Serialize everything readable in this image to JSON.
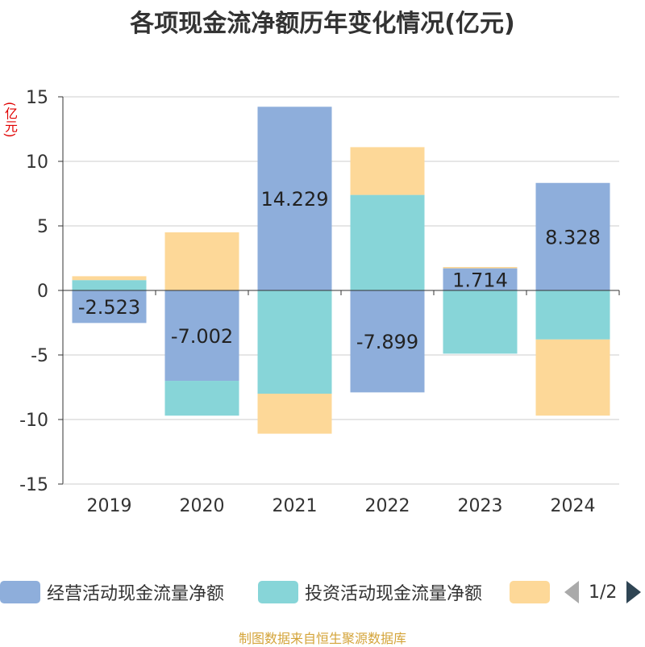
{
  "chart_data": {
    "type": "bar",
    "stacked": true,
    "title": "各项现金流净额历年变化情况(亿元)",
    "ylabel": "(亿元)",
    "xlabel": "",
    "categories": [
      "2019",
      "2020",
      "2021",
      "2022",
      "2023",
      "2024"
    ],
    "ylim": [
      -15,
      15
    ],
    "yticks": [
      15,
      10,
      5,
      0,
      -5,
      -10,
      -15
    ],
    "series": [
      {
        "name": "经营活动现金流量净额",
        "color": "#8eaedb",
        "values": [
          -2.523,
          -7.002,
          14.229,
          -7.899,
          1.714,
          8.328
        ],
        "labels": [
          "-2.523",
          "-7.002",
          "14.229",
          "-7.899",
          "1.714",
          "8.328"
        ]
      },
      {
        "name": "投资活动现金流量净额",
        "color": "#87d5d8",
        "values": [
          0.8,
          -2.7,
          -8.0,
          7.4,
          -4.9,
          -3.8
        ]
      },
      {
        "name": "",
        "color": "#fdd898",
        "values": [
          0.3,
          4.5,
          -3.1,
          3.7,
          0.1,
          -5.9
        ]
      }
    ],
    "legend_position": "bottom"
  },
  "legend": {
    "page": "1/2"
  },
  "source": "制图数据来自恒生聚源数据库"
}
